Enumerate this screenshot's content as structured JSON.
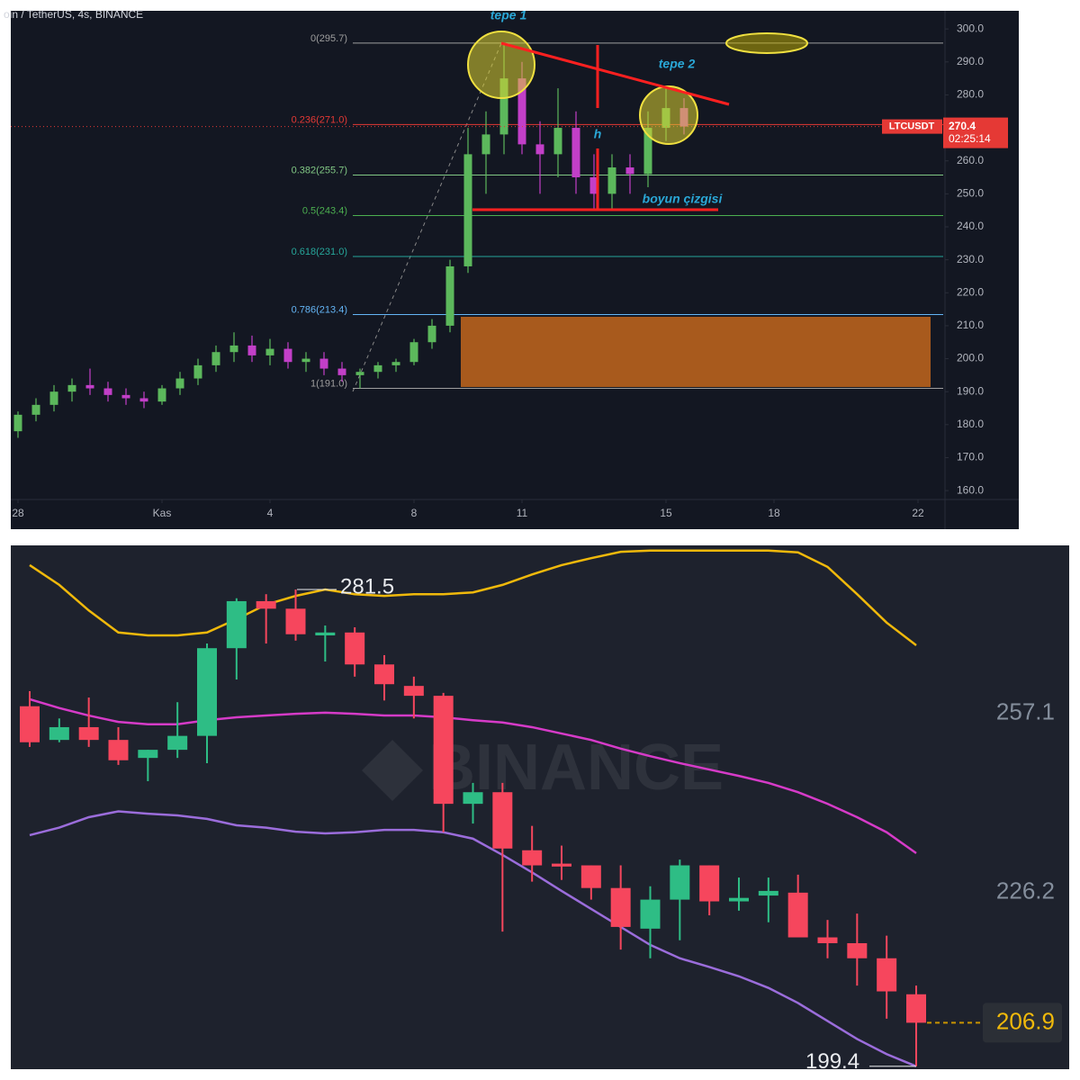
{
  "chart_data": [
    {
      "type": "candlestick",
      "title": "oin / TetherUS, 4s, BINANCE",
      "symbol": "LTCUSDT",
      "last_price": 270.4,
      "countdown": "02:25:14",
      "up_color": "#5cb85c",
      "down_color": "#c23fc8",
      "x": [
        0,
        0.5,
        1,
        1.5,
        2,
        2.5,
        3,
        3.5,
        4,
        4.5,
        5,
        5.5,
        6,
        6.5,
        7,
        7.5,
        8,
        8.5,
        9,
        9.5,
        10,
        10.5,
        11,
        11.5,
        12,
        12.5,
        13,
        13.5,
        14,
        14.5,
        15,
        15.5,
        16,
        16.5,
        17,
        17.5,
        18,
        18.5
      ],
      "open": [
        178,
        183,
        186,
        190,
        192,
        191,
        189,
        188,
        187,
        191,
        194,
        198,
        202,
        204,
        201,
        203,
        199,
        200,
        197,
        195,
        196,
        198,
        199,
        205,
        210,
        228,
        262,
        268,
        285,
        265,
        262,
        270,
        255,
        250,
        258,
        256,
        270,
        276
      ],
      "high": [
        184,
        188,
        192,
        194,
        197,
        193,
        191,
        190,
        192,
        196,
        200,
        204,
        208,
        207,
        206,
        205,
        202,
        202,
        199,
        197,
        199,
        200,
        206,
        212,
        230,
        270,
        275,
        295.7,
        290,
        272,
        282,
        275,
        262,
        262,
        262,
        275,
        282,
        279
      ],
      "low": [
        176,
        181,
        184,
        187,
        189,
        187,
        186,
        185,
        186,
        189,
        192,
        196,
        199,
        199,
        198,
        197,
        196,
        195,
        193,
        191,
        194,
        196,
        198,
        203,
        208,
        226,
        250,
        262,
        262,
        250,
        255,
        250,
        245,
        245,
        250,
        252,
        266,
        268
      ],
      "close": [
        183,
        186,
        190,
        192,
        191,
        189,
        188,
        187,
        191,
        194,
        198,
        202,
        204,
        201,
        203,
        199,
        200,
        197,
        195,
        196,
        198,
        199,
        205,
        210,
        228,
        262,
        268,
        285,
        265,
        262,
        270,
        255,
        250,
        258,
        256,
        270,
        276,
        270.4
      ],
      "xlim": [
        -0.2,
        25.75
      ],
      "xticks": [
        {
          "value": 0,
          "label": "28"
        },
        {
          "value": 4,
          "label": "Kas"
        },
        {
          "value": 7,
          "label": "4"
        },
        {
          "value": 11,
          "label": "8"
        },
        {
          "value": 14,
          "label": "11"
        },
        {
          "value": 18,
          "label": "15"
        },
        {
          "value": 21,
          "label": "18"
        },
        {
          "value": 25,
          "label": "22"
        }
      ],
      "ylim": [
        157.3,
        305.5
      ],
      "yticks": [
        {
          "value": 160,
          "label": "160.0"
        },
        {
          "value": 170,
          "label": "170.0"
        },
        {
          "value": 180,
          "label": "180.0"
        },
        {
          "value": 190,
          "label": "190.0"
        },
        {
          "value": 200,
          "label": "200.0"
        },
        {
          "value": 210,
          "label": "210.0"
        },
        {
          "value": 220,
          "label": "220.0"
        },
        {
          "value": 230,
          "label": "230.0"
        },
        {
          "value": 240,
          "label": "240.0"
        },
        {
          "value": 250,
          "label": "250.0"
        },
        {
          "value": 260,
          "label": "260.0"
        },
        {
          "value": 270,
          "label": "270.0"
        },
        {
          "value": 280,
          "label": "280.0"
        },
        {
          "value": 290,
          "label": "290.0"
        },
        {
          "value": 300,
          "label": "300.0"
        }
      ],
      "fib_levels": [
        {
          "value": 295.7,
          "label": "0(295.7)",
          "color": "#9e9e9e"
        },
        {
          "value": 271.0,
          "label": "0.236(271.0)",
          "color": "#e53935"
        },
        {
          "value": 255.7,
          "label": "0.382(255.7)",
          "color": "#81c784"
        },
        {
          "value": 243.4,
          "label": "0.5(243.4)",
          "color": "#4caf50"
        },
        {
          "value": 231.0,
          "label": "0.618(231.0)",
          "color": "#26a69a"
        },
        {
          "value": 213.4,
          "label": "0.786(213.4)",
          "color": "#64b5f6"
        },
        {
          "value": 191.0,
          "label": "1(191.0)",
          "color": "#9e9e9e"
        }
      ],
      "annotations": [
        "tepe 1",
        "tepe 2",
        "h",
        "boyun çizgisi"
      ]
    },
    {
      "type": "candlestick",
      "watermark": "BINANCE",
      "up_color": "#2ebd85",
      "down_color": "#f6465d",
      "open": [
        261.4,
        255.6,
        257.8,
        255.6,
        252.5,
        253.9,
        256.3,
        271.4,
        279.5,
        278.2,
        273.6,
        274.1,
        268.6,
        264.9,
        263.2,
        244.6,
        246.6,
        236.6,
        234.3,
        234.0,
        230.1,
        223.1,
        228.1,
        234.0,
        227.8,
        228.8,
        229.3,
        221.6,
        220.6,
        218.0,
        211.8
      ],
      "high": [
        264.0,
        259.3,
        262.9,
        257.8,
        253.9,
        262.1,
        272.2,
        280.0,
        280.7,
        281.5,
        275.3,
        275.0,
        270.2,
        266.5,
        263.7,
        248.2,
        248.2,
        240.8,
        237.4,
        234.0,
        234.0,
        230.4,
        235.0,
        234.0,
        231.9,
        231.9,
        232.4,
        224.6,
        225.7,
        221.9,
        213.3
      ],
      "low": [
        254.4,
        255.2,
        254.4,
        251.3,
        248.5,
        252.5,
        251.6,
        266.0,
        272.2,
        272.7,
        269.1,
        266.5,
        262.4,
        259.3,
        239.7,
        241.2,
        222.6,
        231.2,
        231.5,
        228.1,
        219.5,
        218.0,
        221.1,
        225.4,
        226.2,
        224.2,
        221.6,
        218.0,
        213.3,
        207.6,
        199.4
      ],
      "close": [
        255.2,
        257.8,
        255.6,
        252.1,
        253.9,
        256.3,
        271.4,
        279.5,
        278.2,
        273.8,
        274.1,
        268.6,
        265.2,
        263.2,
        244.6,
        246.6,
        236.9,
        234.0,
        233.8,
        230.1,
        223.4,
        228.1,
        234.0,
        227.8,
        228.4,
        229.6,
        221.6,
        220.6,
        218.0,
        212.3,
        206.9
      ],
      "bands": [
        {
          "color": "#f0b90b",
          "values": [
            285.7,
            282.3,
            277.9,
            274.1,
            273.6,
            273.6,
            274.1,
            276.4,
            278.9,
            280.4,
            281.5,
            280.7,
            280.4,
            280.7,
            280.7,
            281.0,
            282.3,
            284.1,
            285.7,
            286.9,
            288.0,
            288.2,
            288.2,
            288.2,
            288.2,
            288.2,
            287.9,
            285.4,
            280.7,
            275.8,
            271.9
          ]
        },
        {
          "color": "#d63bc8",
          "values": [
            262.6,
            261.1,
            259.8,
            258.7,
            258.3,
            258.3,
            259.0,
            259.5,
            259.8,
            260.1,
            260.3,
            260.1,
            259.8,
            259.8,
            259.5,
            259.0,
            258.6,
            257.8,
            256.7,
            255.6,
            254.1,
            252.8,
            251.6,
            250.5,
            249.4,
            248.2,
            246.6,
            244.6,
            242.3,
            239.7,
            236.1
          ]
        },
        {
          "color": "#9b6ddb",
          "values": [
            239.2,
            240.5,
            242.3,
            243.3,
            242.9,
            242.6,
            242.0,
            240.9,
            240.5,
            239.8,
            239.5,
            239.7,
            240.1,
            240.1,
            239.7,
            238.6,
            235.8,
            232.8,
            229.6,
            226.5,
            223.4,
            220.3,
            218.0,
            216.5,
            214.9,
            212.9,
            210.3,
            207.2,
            204.1,
            201.5,
            199.4
          ]
        }
      ],
      "ylim": [
        198.9,
        289.1
      ],
      "yticks": [
        257.1,
        226.2
      ],
      "last_price": 206.9,
      "high_label": 281.5,
      "low_label": 199.4
    }
  ]
}
